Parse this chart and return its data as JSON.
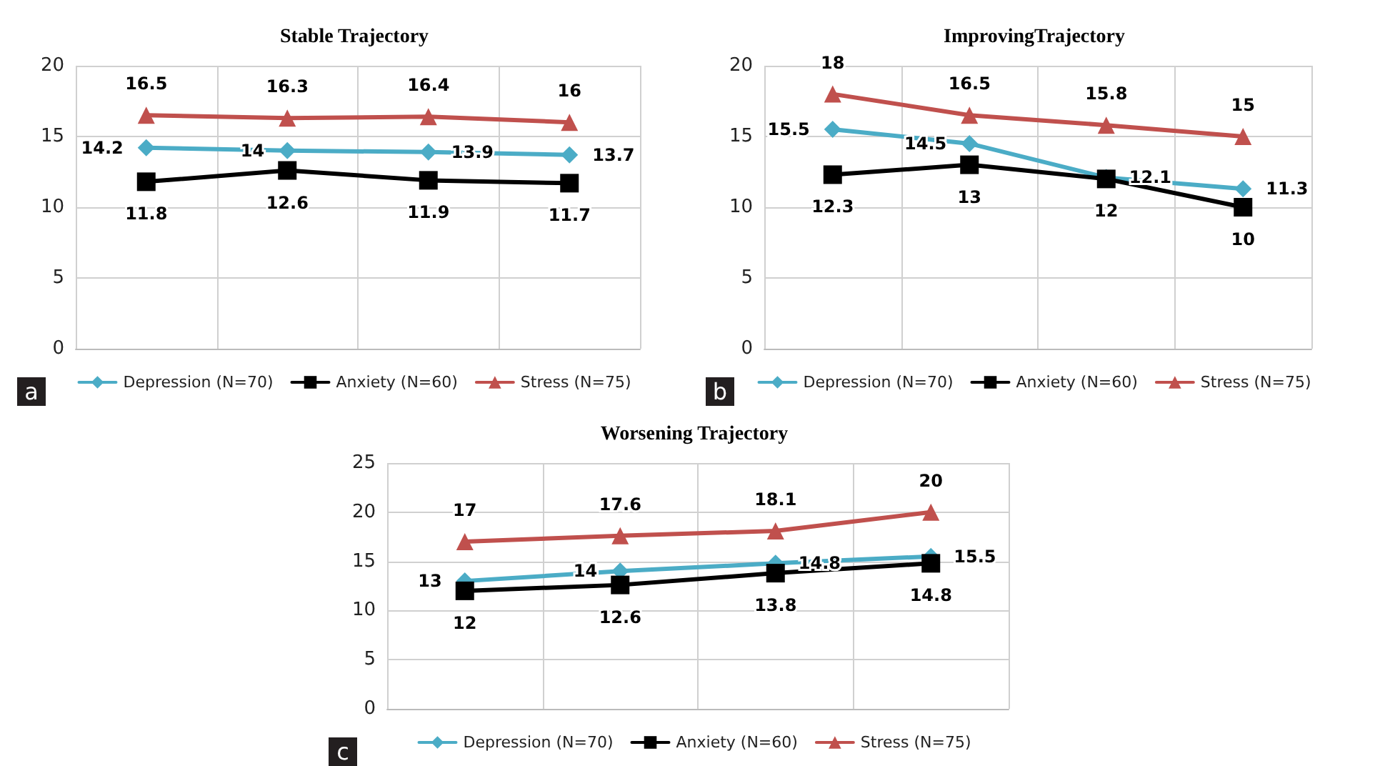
{
  "chart_data": [
    {
      "type": "line",
      "title": "Stable Trajectory",
      "categories": [
        null,
        null,
        null,
        null
      ],
      "ylim": [
        0,
        20
      ],
      "yticks": [
        0,
        5,
        10,
        15,
        20
      ],
      "grid": true,
      "legend": "bottom",
      "data_labels": true,
      "annotations": [
        "a"
      ],
      "series": [
        {
          "name": "Depression (N=70)",
          "color": "#4bacc6",
          "marker": "diamond",
          "values": [
            14.2,
            14,
            13.9,
            13.7
          ]
        },
        {
          "name": "Anxiety (N=60)",
          "color": "#000000",
          "marker": "square",
          "values": [
            11.8,
            12.6,
            11.9,
            11.7
          ]
        },
        {
          "name": "Stress (N=75)",
          "color": "#c0504d",
          "marker": "triangle",
          "values": [
            16.5,
            16.3,
            16.4,
            16
          ]
        }
      ]
    },
    {
      "type": "line",
      "title": "ImprovingTrajectory",
      "categories": [
        null,
        null,
        null,
        null
      ],
      "ylim": [
        0,
        20
      ],
      "yticks": [
        0,
        5,
        10,
        15,
        20
      ],
      "grid": true,
      "legend": "bottom",
      "data_labels": true,
      "annotations": [
        "b"
      ],
      "series": [
        {
          "name": "Depression (N=70)",
          "color": "#4bacc6",
          "marker": "diamond",
          "values": [
            15.5,
            14.5,
            12.1,
            11.3
          ]
        },
        {
          "name": "Anxiety (N=60)",
          "color": "#000000",
          "marker": "square",
          "values": [
            12.3,
            13,
            12,
            10
          ]
        },
        {
          "name": "Stress (N=75)",
          "color": "#c0504d",
          "marker": "triangle",
          "values": [
            18,
            16.5,
            15.8,
            15
          ]
        }
      ]
    },
    {
      "type": "line",
      "title": "Worsening Trajectory",
      "categories": [
        null,
        null,
        null,
        null
      ],
      "ylim": [
        0,
        25
      ],
      "yticks": [
        0,
        5,
        10,
        15,
        20,
        25
      ],
      "grid": true,
      "legend": "bottom",
      "data_labels": true,
      "annotations": [
        "c"
      ],
      "series": [
        {
          "name": "Depression (N=70)",
          "color": "#4bacc6",
          "marker": "diamond",
          "values": [
            13,
            14,
            14.8,
            15.5
          ]
        },
        {
          "name": "Anxiety (N=60)",
          "color": "#000000",
          "marker": "square",
          "values": [
            12,
            12.6,
            13.8,
            14.8
          ]
        },
        {
          "name": "Stress (N=75)",
          "color": "#c0504d",
          "marker": "triangle",
          "values": [
            17,
            17.6,
            18.1,
            20
          ]
        }
      ]
    }
  ]
}
